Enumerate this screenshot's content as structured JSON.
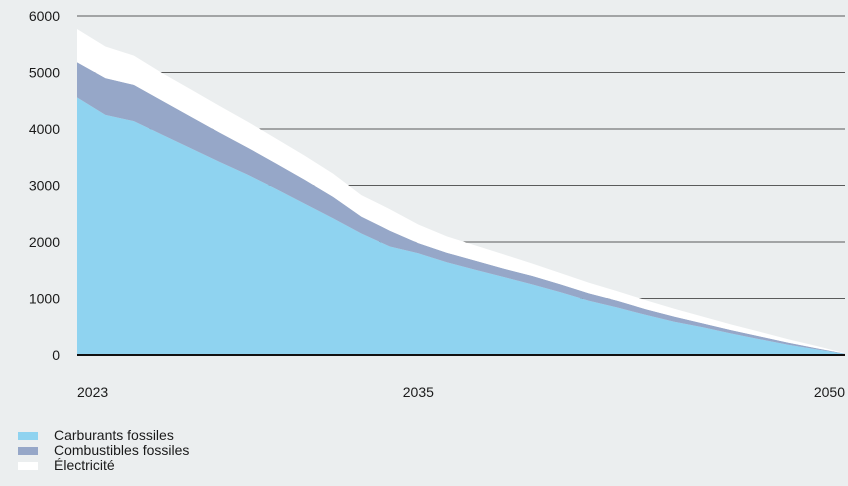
{
  "chart_data": {
    "type": "area",
    "stacked": true,
    "x": [
      2023,
      2024,
      2025,
      2026,
      2027,
      2028,
      2029,
      2030,
      2031,
      2032,
      2033,
      2034,
      2035,
      2036,
      2037,
      2038,
      2039,
      2040,
      2041,
      2042,
      2043,
      2044,
      2045,
      2046,
      2047,
      2048,
      2049,
      2050
    ],
    "x_tick_labels": [
      "2023",
      "2035",
      "2050"
    ],
    "y_ticks": [
      0,
      1000,
      2000,
      3000,
      4000,
      5000,
      6000
    ],
    "ylim": [
      0,
      6000
    ],
    "grid": true,
    "legend_position": "bottom-left",
    "series": [
      {
        "name": "Carburants fossiles",
        "color": "#8fd3f0",
        "values": [
          4560,
          4250,
          4140,
          3900,
          3660,
          3420,
          3190,
          2940,
          2680,
          2420,
          2150,
          1920,
          1800,
          1640,
          1510,
          1380,
          1250,
          1110,
          960,
          840,
          710,
          590,
          490,
          380,
          280,
          180,
          100,
          20
        ]
      },
      {
        "name": "Combustibles fossiles",
        "color": "#96a7c8",
        "values": [
          620,
          650,
          640,
          600,
          560,
          520,
          480,
          450,
          420,
          380,
          300,
          280,
          180,
          170,
          160,
          150,
          150,
          140,
          130,
          120,
          100,
          90,
          70,
          60,
          50,
          40,
          20,
          5
        ]
      },
      {
        "name": "Électricité",
        "color": "#ffffff",
        "values": [
          590,
          560,
          520,
          490,
          480,
          470,
          460,
          440,
          430,
          410,
          380,
          380,
          330,
          290,
          270,
          250,
          220,
          200,
          190,
          170,
          160,
          140,
          120,
          100,
          80,
          60,
          40,
          5
        ]
      }
    ]
  }
}
